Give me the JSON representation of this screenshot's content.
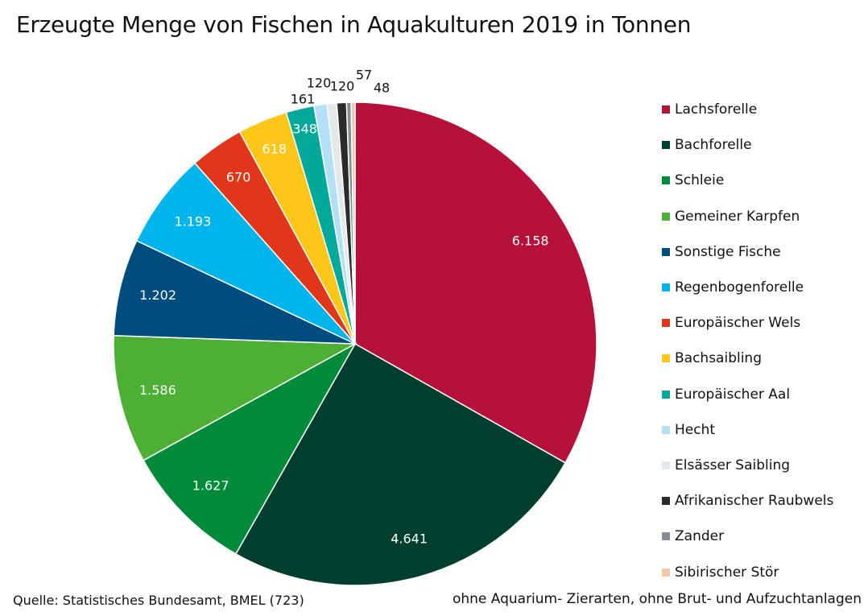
{
  "title": "Erzeugte Menge von Fischen in Aquakulturen 2019 in Tonnen",
  "source": "Quelle: Statistisches Bundesamt, BMEL (723)",
  "note": "ohne Aquarium- Zierarten, ohne Brut- und Aufzuchtanlagen",
  "chart_data": {
    "type": "pie",
    "title": "Erzeugte Menge von Fischen in Aquakulturen 2019 in Tonnen",
    "legend_position": "right",
    "slices": [
      {
        "name": "Lachsforelle",
        "value": 6158,
        "label": "6.158",
        "color": "#B5113B"
      },
      {
        "name": "Bachforelle",
        "value": 4641,
        "label": "4.641",
        "color": "#003F2E"
      },
      {
        "name": "Schleie",
        "value": 1627,
        "label": "1.627",
        "color": "#008B3A"
      },
      {
        "name": "Gemeiner Karpfen",
        "value": 1586,
        "label": "1.586",
        "color": "#4DAF34"
      },
      {
        "name": "Sonstige Fische",
        "value": 1202,
        "label": "1.202",
        "color": "#004C7F"
      },
      {
        "name": "Regenbogenforelle",
        "value": 1193,
        "label": "1.193",
        "color": "#00B4EC"
      },
      {
        "name": "Europäischer Wels",
        "value": 670,
        "label": "670",
        "color": "#E0361A"
      },
      {
        "name": "Bachsaibling",
        "value": 618,
        "label": "618",
        "color": "#FFC61A"
      },
      {
        "name": "Europäischer Aal",
        "value": 348,
        "label": "348",
        "color": "#00A99A"
      },
      {
        "name": "Hecht",
        "value": 161,
        "label": "161",
        "color": "#B3E0F5"
      },
      {
        "name": "Elsässer Saibling",
        "value": 120,
        "label": "120",
        "color": "#E3E8EC"
      },
      {
        "name": "Afrikanischer Raubwels",
        "value": 120,
        "label": "120",
        "color": "#2B2B2B"
      },
      {
        "name": "Zander",
        "value": 57,
        "label": "57",
        "color": "#858E96"
      },
      {
        "name": "Sibirischer Stör",
        "value": 48,
        "label": "48",
        "color": "#F4C7A6"
      }
    ]
  }
}
